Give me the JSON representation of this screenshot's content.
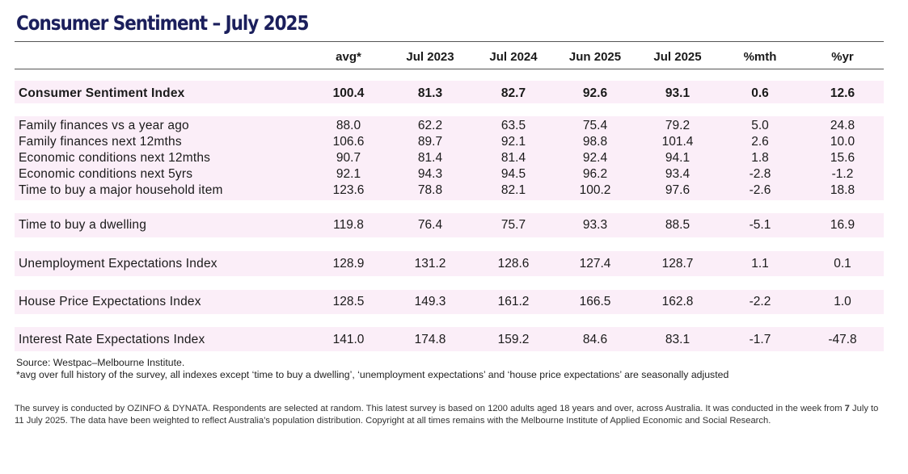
{
  "title": "Consumer Sentiment – July 2025",
  "columns": [
    "avg*",
    "Jul 2023",
    "Jul 2024",
    "Jun 2025",
    "Jul 2025",
    "%mth",
    "%yr"
  ],
  "rows": [
    {
      "label": "Consumer Sentiment Index",
      "values": [
        "100.4",
        "81.3",
        "82.7",
        "92.6",
        "93.1",
        "0.6",
        "12.6"
      ]
    },
    {
      "label": "Family finances vs a year ago",
      "values": [
        "88.0",
        "62.2",
        "63.5",
        "75.4",
        "79.2",
        "5.0",
        "24.8"
      ]
    },
    {
      "label": "Family finances next 12mths",
      "values": [
        "106.6",
        "89.7",
        "92.1",
        "98.8",
        "101.4",
        "2.6",
        "10.0"
      ]
    },
    {
      "label": "Economic conditions next 12mths",
      "values": [
        "90.7",
        "81.4",
        "81.4",
        "92.4",
        "94.1",
        "1.8",
        "15.6"
      ]
    },
    {
      "label": "Economic conditions next 5yrs",
      "values": [
        "92.1",
        "94.3",
        "94.5",
        "96.2",
        "93.4",
        "-2.8",
        "-1.2"
      ]
    },
    {
      "label": "Time to buy a major household item",
      "values": [
        "123.6",
        "78.8",
        "82.1",
        "100.2",
        "97.6",
        "-2.6",
        "18.8"
      ]
    },
    {
      "label": "Time to buy a dwelling",
      "values": [
        "119.8",
        "76.4",
        "75.7",
        "93.3",
        "88.5",
        "-5.1",
        "16.9"
      ]
    },
    {
      "label": "Unemployment Expectations Index",
      "values": [
        "128.9",
        "131.2",
        "128.6",
        "127.4",
        "128.7",
        "1.1",
        "0.1"
      ]
    },
    {
      "label": "House Price Expectations Index",
      "values": [
        "128.5",
        "149.3",
        "161.2",
        "166.5",
        "162.8",
        "-2.2",
        "1.0"
      ]
    },
    {
      "label": "Interest Rate Expectations Index",
      "values": [
        "141.0",
        "174.8",
        "159.2",
        "84.6",
        "83.1",
        "-1.7",
        "-47.8"
      ]
    }
  ],
  "source": "Source: Westpac–Melbourne Institute.",
  "avg_note": "*avg over full history of the survey, all indexes except ‘time to buy a dwelling’, ‘unemployment expectations’ and ‘house price expectations’ are seasonally adjusted",
  "footer": {
    "part1": "The survey is conducted by OZINFO & DYNATA. Respondents are selected at random. This latest survey is based on 1200 adults aged 18 years and over, across Australia. It was conducted in the week from ",
    "bold1": "7",
    "part2": " July to 11 July 2025. The data have been weighted to reflect Australia’s population distribution. Copyright at all times remains with the Melbourne Institute of Applied Economic and Social Research."
  },
  "colors": {
    "title": "#1b1f5c",
    "band": "#fbeef8"
  }
}
